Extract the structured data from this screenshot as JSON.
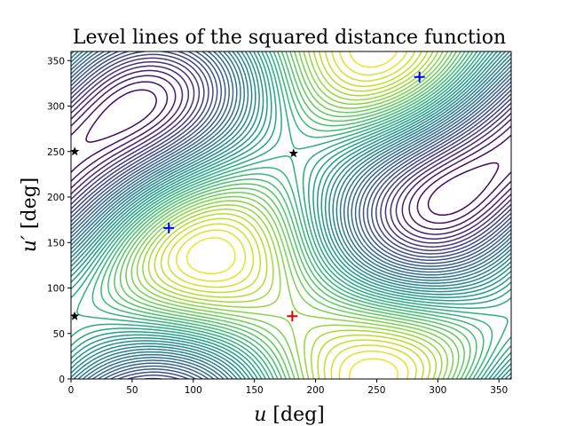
{
  "chart_data": {
    "type": "contour",
    "title": "Level lines of the squared distance function",
    "xlabel_var": "u",
    "ylabel_var": "u′",
    "unit": "[deg]",
    "xlim": [
      0,
      360
    ],
    "ylim": [
      0,
      360
    ],
    "xticks": [
      0,
      50,
      100,
      150,
      200,
      250,
      300,
      350
    ],
    "yticks": [
      0,
      50,
      100,
      150,
      200,
      250,
      300,
      350
    ],
    "colormap": "viridis",
    "minimum_point": {
      "x": 181,
      "y": 69,
      "marker": "plus",
      "color": "#e00000"
    },
    "saddle_like_points": [
      {
        "x": 80,
        "y": 166,
        "marker": "plus",
        "color": "#0000ff"
      },
      {
        "x": 285,
        "y": 332,
        "marker": "plus",
        "color": "#0000ff"
      }
    ],
    "star_points": [
      {
        "x": 3,
        "y": 69,
        "marker": "star",
        "color": "#000000"
      },
      {
        "x": 3,
        "y": 250,
        "marker": "star",
        "color": "#000000"
      },
      {
        "x": 182,
        "y": 248,
        "marker": "star",
        "color": "#000000"
      }
    ]
  }
}
